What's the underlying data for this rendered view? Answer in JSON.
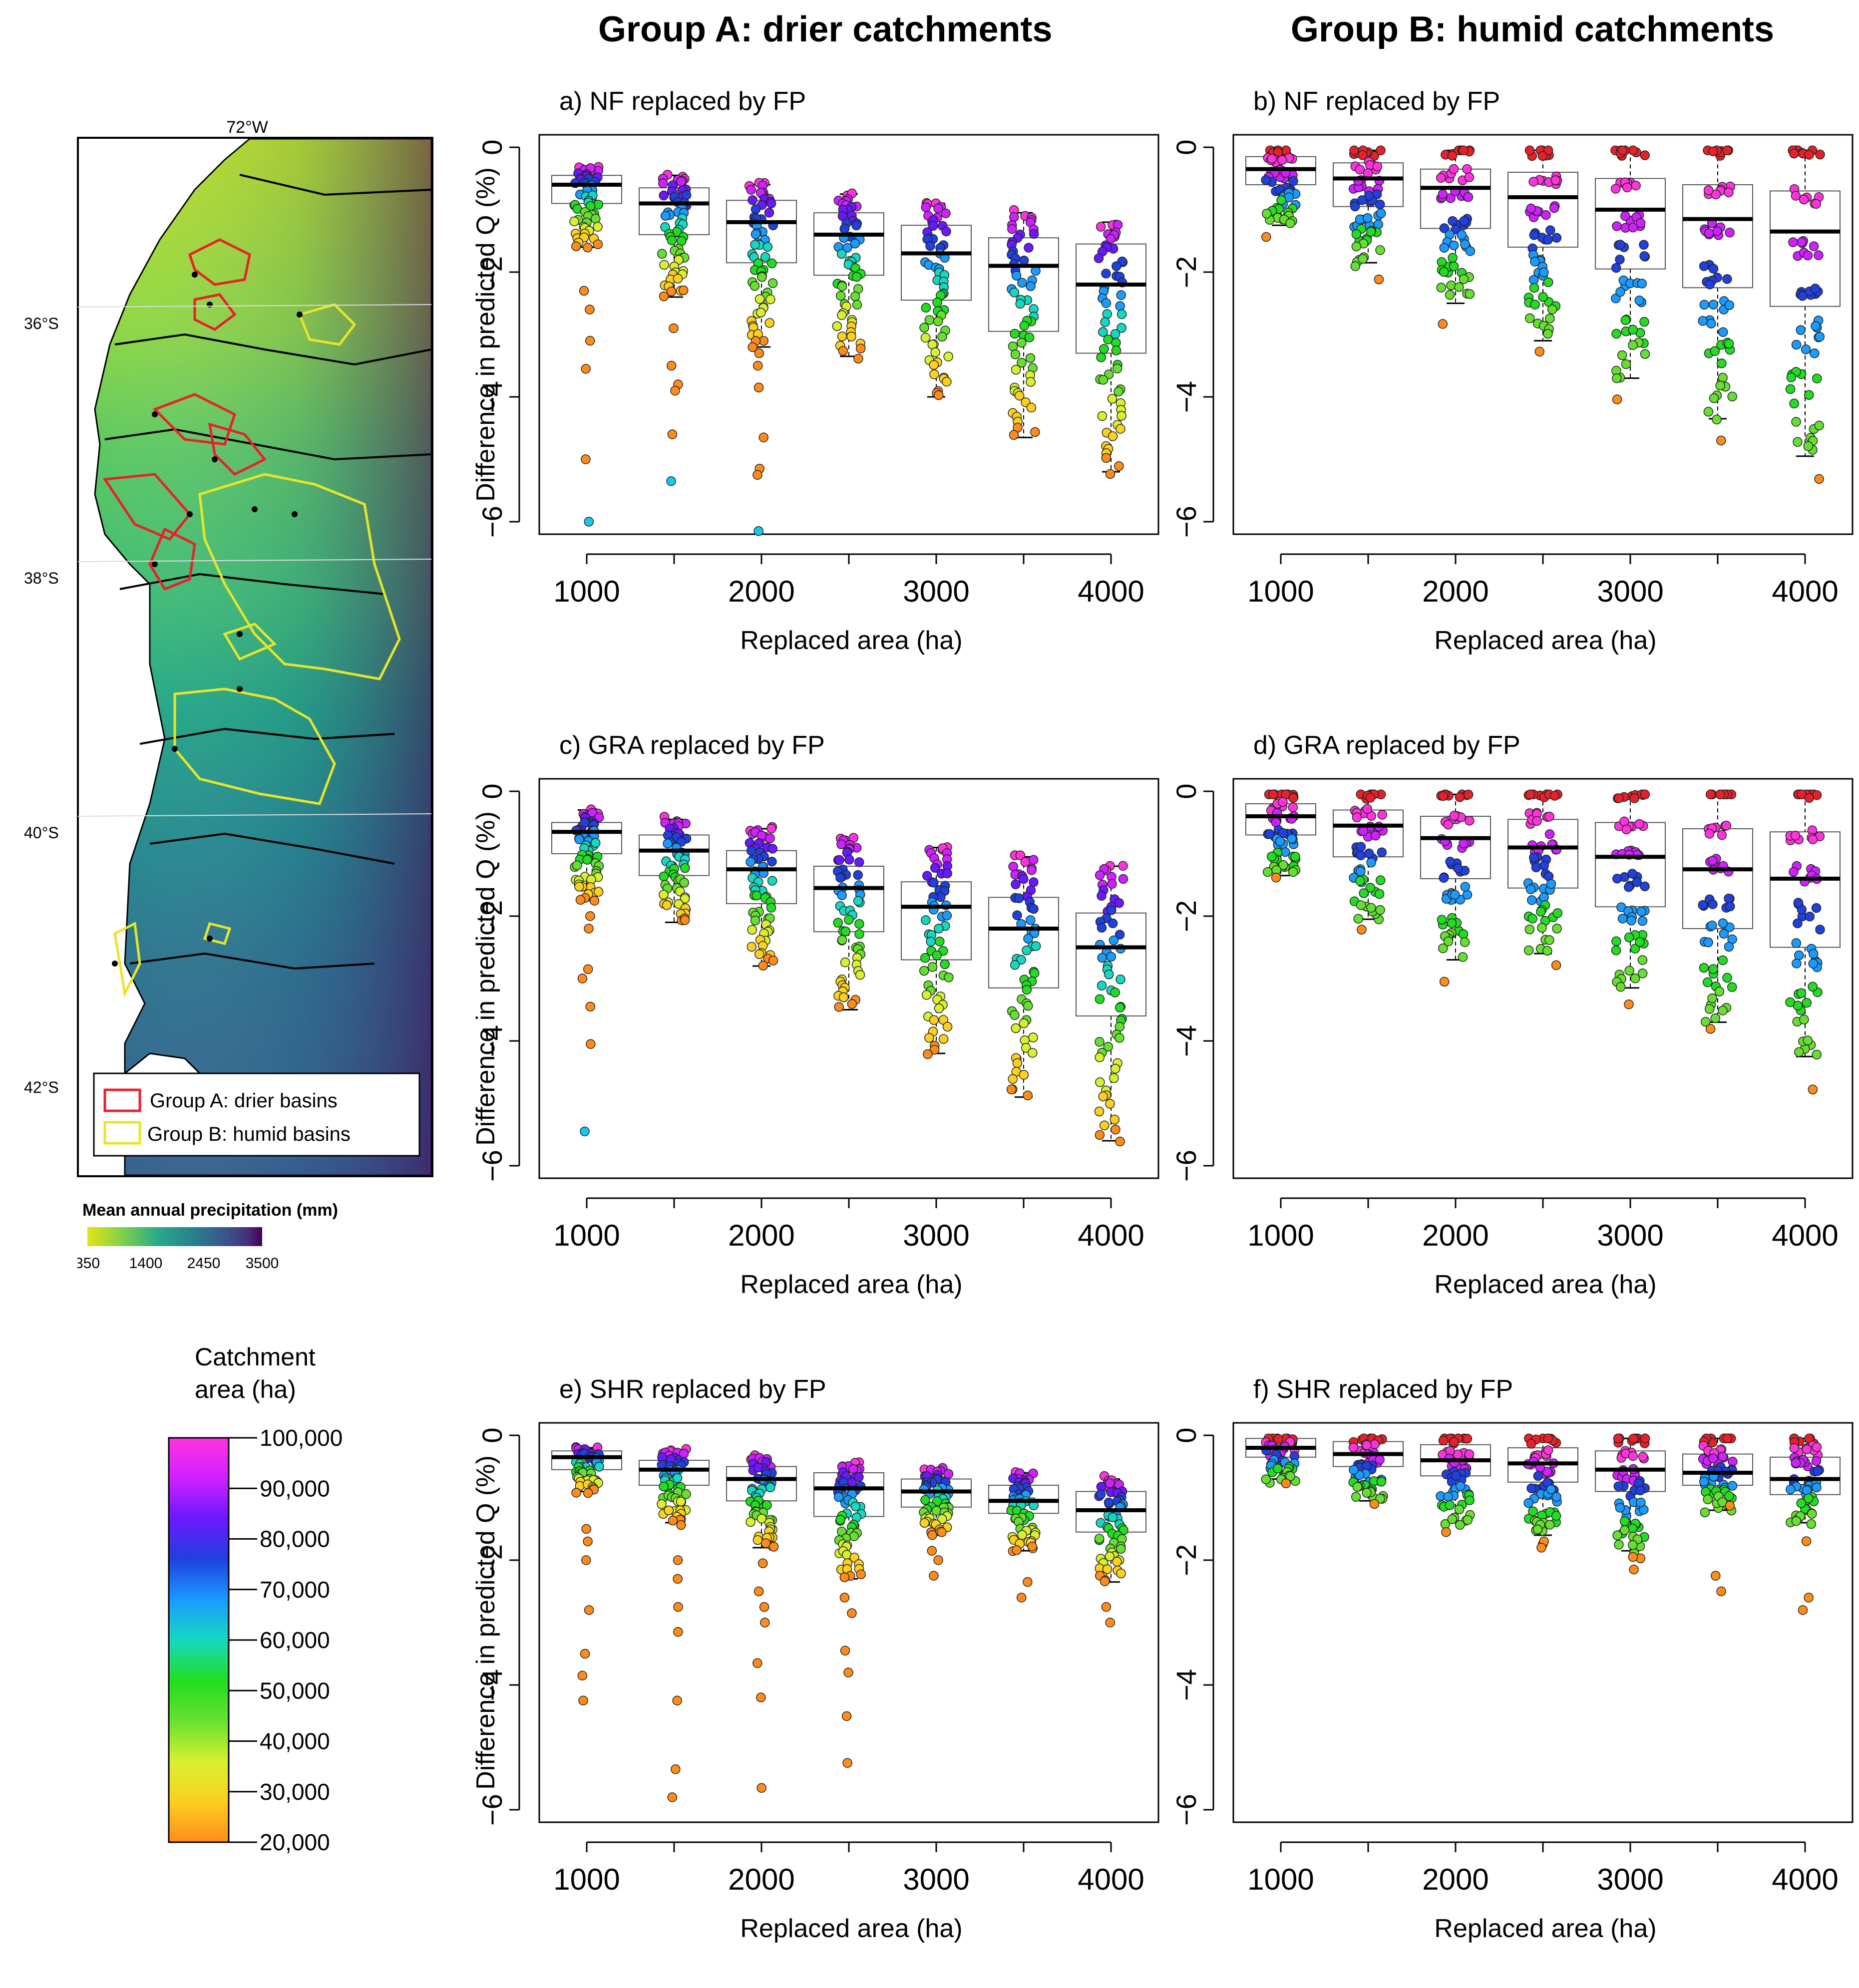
{
  "headers": {
    "group_a": "Group A: drier catchments",
    "group_b": "Group B: humid catchments"
  },
  "map": {
    "lon_label": "72°W",
    "lat_labels": [
      "36°S",
      "38°S",
      "40°S",
      "42°S"
    ],
    "legend_a": "Group A: drier basins",
    "legend_b": "Group B: humid basins",
    "legend_a_color": "#e8202a",
    "legend_b_color": "#e7e52a",
    "precip_title": "Mean annual precipitation (mm)",
    "precip_ticks": [
      "350",
      "1400",
      "2450",
      "3500"
    ],
    "precip_colors": [
      "#e2e418",
      "#7fd04b",
      "#2aa98a",
      "#26828e",
      "#3b528b",
      "#472d7b",
      "#440154"
    ]
  },
  "catchment_legend": {
    "title_line1": "Catchment",
    "title_line2": "area (ha)",
    "ticks": [
      "100,000",
      "90,000",
      "80,000",
      "70,000",
      "60,000",
      "50,000",
      "40,000",
      "30,000",
      "20,000"
    ],
    "colors": [
      "#ff33dd",
      "#9b1cff",
      "#2020d0",
      "#1e7bff",
      "#14c8ee",
      "#16e2a0",
      "#22dd22",
      "#aaf030",
      "#f5f528",
      "#ff8c1a"
    ]
  },
  "chart_data": [
    {
      "type": "box",
      "panel": "a",
      "title": "a) NF replaced by FP",
      "xlabel": "Replaced area (ha)",
      "ylabel": "Difference in predicted Q (%)",
      "categories": [
        "1000",
        "1500",
        "2000",
        "2500",
        "3000",
        "3500",
        "4000"
      ],
      "x_tick_labels": [
        "1000",
        "2000",
        "3000",
        "4000"
      ],
      "ylim": [
        -6.2,
        0.2
      ],
      "y_ticks": [
        0,
        -2,
        -4,
        -6
      ],
      "y_tick_labels": [
        "0",
        "−2",
        "−4",
        "−6"
      ],
      "boxes": [
        {
          "q1": -0.9,
          "median": -0.6,
          "q3": -0.45,
          "whisker_low": -1.6,
          "whisker_high": -0.3
        },
        {
          "q1": -1.4,
          "median": -0.9,
          "q3": -0.65,
          "whisker_low": -2.4,
          "whisker_high": -0.45
        },
        {
          "q1": -1.85,
          "median": -1.2,
          "q3": -0.85,
          "whisker_low": -3.2,
          "whisker_high": -0.6
        },
        {
          "q1": -2.05,
          "median": -1.4,
          "q3": -1.05,
          "whisker_low": -3.35,
          "whisker_high": -0.75
        },
        {
          "q1": -2.45,
          "median": -1.7,
          "q3": -1.25,
          "whisker_low": -4.0,
          "whisker_high": -0.9
        },
        {
          "q1": -2.95,
          "median": -1.9,
          "q3": -1.45,
          "whisker_low": -4.65,
          "whisker_high": -1.05
        },
        {
          "q1": -3.3,
          "median": -2.2,
          "q3": -1.55,
          "whisker_low": -5.2,
          "whisker_high": -1.2
        }
      ],
      "outliers": [
        {
          "x": "1000",
          "values": [
            -2.3,
            -2.6,
            -3.1,
            -3.55,
            -5.0,
            -6.0
          ]
        },
        {
          "x": "1500",
          "values": [
            -2.9,
            -3.5,
            -3.8,
            -3.9,
            -4.6,
            -5.35
          ]
        },
        {
          "x": "2000",
          "values": [
            -3.3,
            -3.5,
            -3.85,
            -4.65,
            -5.15,
            -5.25,
            -6.15
          ]
        }
      ]
    },
    {
      "type": "box",
      "panel": "b",
      "title": "b) NF replaced by FP",
      "xlabel": "Replaced area (ha)",
      "ylabel": "",
      "categories": [
        "1000",
        "1500",
        "2000",
        "2500",
        "3000",
        "3500",
        "4000"
      ],
      "x_tick_labels": [
        "1000",
        "2000",
        "3000",
        "4000"
      ],
      "ylim": [
        -6.2,
        0.2
      ],
      "y_ticks": [
        0,
        -2,
        -4,
        -6
      ],
      "y_tick_labels": [
        "0",
        "−2",
        "−4",
        "−6"
      ],
      "boxes": [
        {
          "q1": -0.6,
          "median": -0.35,
          "q3": -0.15,
          "whisker_low": -1.25,
          "whisker_high": -0.05
        },
        {
          "q1": -0.95,
          "median": -0.5,
          "q3": -0.25,
          "whisker_low": -1.85,
          "whisker_high": -0.05
        },
        {
          "q1": -1.3,
          "median": -0.65,
          "q3": -0.35,
          "whisker_low": -2.5,
          "whisker_high": -0.05
        },
        {
          "q1": -1.6,
          "median": -0.8,
          "q3": -0.4,
          "whisker_low": -3.1,
          "whisker_high": -0.05
        },
        {
          "q1": -1.95,
          "median": -1.0,
          "q3": -0.5,
          "whisker_low": -3.7,
          "whisker_high": -0.05
        },
        {
          "q1": -2.25,
          "median": -1.15,
          "q3": -0.6,
          "whisker_low": -4.35,
          "whisker_high": -0.05
        },
        {
          "q1": -2.55,
          "median": -1.35,
          "q3": -0.7,
          "whisker_low": -4.95,
          "whisker_high": -0.05
        }
      ],
      "outliers": []
    },
    {
      "type": "box",
      "panel": "c",
      "title": "c) GRA replaced by FP",
      "xlabel": "Replaced area (ha)",
      "ylabel": "Difference in predicted Q (%)",
      "categories": [
        "1000",
        "1500",
        "2000",
        "2500",
        "3000",
        "3500",
        "4000"
      ],
      "x_tick_labels": [
        "1000",
        "2000",
        "3000",
        "4000"
      ],
      "ylim": [
        -6.2,
        0.2
      ],
      "y_ticks": [
        0,
        -2,
        -4,
        -6
      ],
      "y_tick_labels": [
        "0",
        "−2",
        "−4",
        "−6"
      ],
      "boxes": [
        {
          "q1": -1.0,
          "median": -0.65,
          "q3": -0.5,
          "whisker_low": -1.75,
          "whisker_high": -0.3
        },
        {
          "q1": -1.35,
          "median": -0.95,
          "q3": -0.7,
          "whisker_low": -2.1,
          "whisker_high": -0.45
        },
        {
          "q1": -1.8,
          "median": -1.25,
          "q3": -0.95,
          "whisker_low": -2.8,
          "whisker_high": -0.6
        },
        {
          "q1": -2.25,
          "median": -1.55,
          "q3": -1.2,
          "whisker_low": -3.5,
          "whisker_high": -0.75
        },
        {
          "q1": -2.7,
          "median": -1.85,
          "q3": -1.45,
          "whisker_low": -4.2,
          "whisker_high": -0.9
        },
        {
          "q1": -3.15,
          "median": -2.2,
          "q3": -1.7,
          "whisker_low": -4.9,
          "whisker_high": -1.05
        },
        {
          "q1": -3.6,
          "median": -2.5,
          "q3": -1.95,
          "whisker_low": -5.6,
          "whisker_high": -1.2
        }
      ],
      "outliers": [
        {
          "x": "1000",
          "values": [
            -2.0,
            -2.2,
            -2.85,
            -3.0,
            -3.45,
            -4.05,
            -5.45
          ]
        }
      ]
    },
    {
      "type": "box",
      "panel": "d",
      "title": "d) GRA replaced by FP",
      "xlabel": "Replaced area (ha)",
      "ylabel": "",
      "categories": [
        "1000",
        "1500",
        "2000",
        "2500",
        "3000",
        "3500",
        "4000"
      ],
      "x_tick_labels": [
        "1000",
        "2000",
        "3000",
        "4000"
      ],
      "ylim": [
        -6.2,
        0.2
      ],
      "y_ticks": [
        0,
        -2,
        -4,
        -6
      ],
      "y_tick_labels": [
        "0",
        "−2",
        "−4",
        "−6"
      ],
      "boxes": [
        {
          "q1": -0.7,
          "median": -0.4,
          "q3": -0.2,
          "whisker_low": -1.35,
          "whisker_high": -0.05
        },
        {
          "q1": -1.05,
          "median": -0.55,
          "q3": -0.3,
          "whisker_low": -2.05,
          "whisker_high": -0.05
        },
        {
          "q1": -1.4,
          "median": -0.75,
          "q3": -0.4,
          "whisker_low": -2.7,
          "whisker_high": -0.05
        },
        {
          "q1": -1.55,
          "median": -0.9,
          "q3": -0.45,
          "whisker_low": -2.6,
          "whisker_high": -0.05
        },
        {
          "q1": -1.85,
          "median": -1.05,
          "q3": -0.5,
          "whisker_low": -3.15,
          "whisker_high": -0.05
        },
        {
          "q1": -2.2,
          "median": -1.25,
          "q3": -0.6,
          "whisker_low": -3.7,
          "whisker_high": -0.05
        },
        {
          "q1": -2.5,
          "median": -1.4,
          "q3": -0.65,
          "whisker_low": -4.25,
          "whisker_high": -0.05
        }
      ],
      "outliers": []
    },
    {
      "type": "box",
      "panel": "e",
      "title": "e) SHR replaced by FP",
      "xlabel": "Replaced area (ha)",
      "ylabel": "Difference in predicted Q (%)",
      "categories": [
        "1000",
        "1500",
        "2000",
        "2500",
        "3000",
        "3500",
        "4000"
      ],
      "x_tick_labels": [
        "1000",
        "2000",
        "3000",
        "4000"
      ],
      "ylim": [
        -6.2,
        0.2
      ],
      "y_ticks": [
        0,
        -2,
        -4,
        -6
      ],
      "y_tick_labels": [
        "0",
        "−2",
        "−4",
        "−6"
      ],
      "boxes": [
        {
          "q1": -0.55,
          "median": -0.35,
          "q3": -0.25,
          "whisker_low": -0.9,
          "whisker_high": -0.2
        },
        {
          "q1": -0.8,
          "median": -0.55,
          "q3": -0.4,
          "whisker_low": -1.4,
          "whisker_high": -0.25
        },
        {
          "q1": -1.05,
          "median": -0.7,
          "q3": -0.5,
          "whisker_low": -1.8,
          "whisker_high": -0.35
        },
        {
          "q1": -1.3,
          "median": -0.85,
          "q3": -0.6,
          "whisker_low": -2.3,
          "whisker_high": -0.45
        },
        {
          "q1": -1.15,
          "median": -0.9,
          "q3": -0.7,
          "whisker_low": -1.6,
          "whisker_high": -0.55
        },
        {
          "q1": -1.25,
          "median": -1.05,
          "q3": -0.8,
          "whisker_low": -1.85,
          "whisker_high": -0.6
        },
        {
          "q1": -1.55,
          "median": -1.2,
          "q3": -0.9,
          "whisker_low": -2.35,
          "whisker_high": -0.7
        }
      ],
      "outliers": [
        {
          "x": "1000",
          "values": [
            -1.5,
            -1.7,
            -2.0,
            -2.8,
            -3.5,
            -3.85,
            -4.25
          ]
        },
        {
          "x": "1500",
          "values": [
            -2.0,
            -2.3,
            -2.75,
            -3.15,
            -4.25,
            -5.35,
            -5.8
          ]
        },
        {
          "x": "2000",
          "values": [
            -2.05,
            -2.5,
            -2.75,
            -3.0,
            -3.65,
            -4.2,
            -5.65
          ]
        },
        {
          "x": "2500",
          "values": [
            -2.6,
            -2.85,
            -3.45,
            -3.8,
            -4.5,
            -5.25
          ]
        },
        {
          "x": "3000",
          "values": [
            -1.85,
            -2.0,
            -2.25
          ]
        },
        {
          "x": "3500",
          "values": [
            -2.35,
            -2.6
          ]
        },
        {
          "x": "4000",
          "values": [
            -2.75,
            -3.0
          ]
        }
      ]
    },
    {
      "type": "box",
      "panel": "f",
      "title": "f) SHR replaced by FP",
      "xlabel": "Replaced area (ha)",
      "ylabel": "",
      "categories": [
        "1000",
        "1500",
        "2000",
        "2500",
        "3000",
        "3500",
        "4000"
      ],
      "x_tick_labels": [
        "1000",
        "2000",
        "3000",
        "4000"
      ],
      "ylim": [
        -6.2,
        0.2
      ],
      "y_ticks": [
        0,
        -2,
        -4,
        -6
      ],
      "y_tick_labels": [
        "0",
        "−2",
        "−4",
        "−6"
      ],
      "boxes": [
        {
          "q1": -0.35,
          "median": -0.2,
          "q3": -0.05,
          "whisker_low": -0.7,
          "whisker_high": -0.05
        },
        {
          "q1": -0.5,
          "median": -0.3,
          "q3": -0.1,
          "whisker_low": -1.05,
          "whisker_high": -0.05
        },
        {
          "q1": -0.65,
          "median": -0.4,
          "q3": -0.15,
          "whisker_low": -1.4,
          "whisker_high": -0.05
        },
        {
          "q1": -0.75,
          "median": -0.45,
          "q3": -0.2,
          "whisker_low": -1.6,
          "whisker_high": -0.05
        },
        {
          "q1": -0.9,
          "median": -0.55,
          "q3": -0.25,
          "whisker_low": -1.85,
          "whisker_high": -0.05
        },
        {
          "q1": -0.8,
          "median": -0.6,
          "q3": -0.3,
          "whisker_low": -1.2,
          "whisker_high": -0.05
        },
        {
          "q1": -0.95,
          "median": -0.7,
          "q3": -0.35,
          "whisker_low": -1.4,
          "whisker_high": -0.05
        }
      ],
      "outliers": [
        {
          "x": "2500",
          "values": [
            -1.7,
            -1.8
          ]
        },
        {
          "x": "3000",
          "values": [
            -1.95,
            -2.15
          ]
        },
        {
          "x": "3500",
          "values": [
            -2.25,
            -2.5
          ]
        },
        {
          "x": "4000",
          "values": [
            -2.6,
            -2.8
          ]
        }
      ]
    }
  ]
}
